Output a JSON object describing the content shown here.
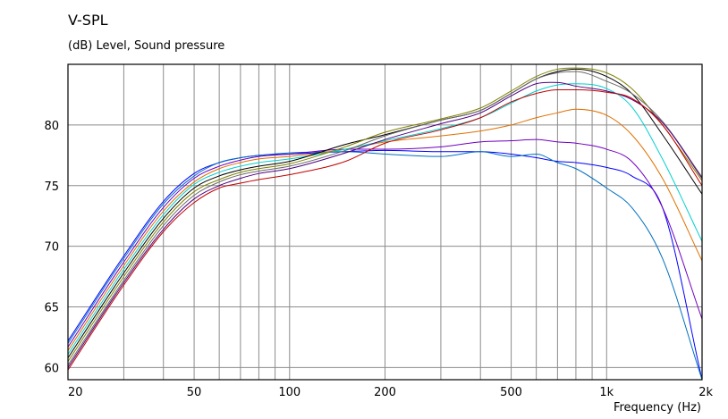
{
  "chart_data": {
    "type": "line",
    "title": "V-SPL",
    "subtitle": "(dB)  Level, Sound pressure",
    "xlabel": "Frequency  (Hz)",
    "ylabel": "",
    "x_scale": "log",
    "xlim": [
      20,
      2000
    ],
    "ylim": [
      59,
      85
    ],
    "grid": true,
    "legend": "none",
    "x_ticks": [
      {
        "value": 20,
        "label": "20"
      },
      {
        "value": 50,
        "label": "50"
      },
      {
        "value": 100,
        "label": "100"
      },
      {
        "value": 200,
        "label": "200"
      },
      {
        "value": 500,
        "label": "500"
      },
      {
        "value": 1000,
        "label": "1k"
      },
      {
        "value": 2000,
        "label": "2k"
      }
    ],
    "y_ticks": [
      60,
      65,
      70,
      75,
      80
    ],
    "x": [
      20,
      30,
      40,
      50,
      60,
      70,
      80,
      100,
      150,
      200,
      300,
      400,
      500,
      600,
      700,
      800,
      1000,
      1200,
      1500,
      2000
    ],
    "series": [
      {
        "color": "#0000ff",
        "values": [
          62.2,
          69.2,
          73.7,
          76.0,
          76.9,
          77.3,
          77.5,
          77.6,
          77.8,
          77.9,
          77.8,
          77.8,
          77.6,
          77.3,
          77.0,
          76.9,
          76.5,
          75.8,
          73.2,
          59.0
        ]
      },
      {
        "color": "#0070c0",
        "values": [
          62.0,
          69.0,
          73.5,
          75.8,
          76.9,
          77.3,
          77.5,
          77.7,
          77.8,
          77.6,
          77.4,
          77.8,
          77.4,
          77.6,
          76.9,
          76.4,
          74.8,
          73.2,
          69.0,
          59.0
        ]
      },
      {
        "color": "#7000c0",
        "values": [
          61.7,
          68.7,
          73.2,
          75.6,
          76.6,
          77.1,
          77.4,
          77.6,
          78.0,
          78.0,
          78.2,
          78.6,
          78.7,
          78.8,
          78.6,
          78.5,
          78.0,
          77.0,
          73.2,
          64.0
        ]
      },
      {
        "color": "#e07000",
        "values": [
          61.4,
          68.4,
          72.9,
          75.3,
          76.4,
          76.9,
          77.2,
          77.4,
          78.0,
          78.6,
          79.1,
          79.5,
          80.0,
          80.6,
          81.0,
          81.3,
          80.8,
          79.2,
          75.6,
          68.8
        ]
      },
      {
        "color": "#00d0d0",
        "values": [
          61.1,
          68.1,
          72.6,
          75.1,
          76.1,
          76.6,
          76.9,
          77.2,
          78.0,
          78.7,
          79.7,
          80.6,
          81.8,
          82.8,
          83.3,
          83.4,
          83.0,
          81.5,
          77.2,
          70.4
        ]
      },
      {
        "color": "#000000",
        "values": [
          60.8,
          67.8,
          72.3,
          74.8,
          75.8,
          76.3,
          76.6,
          77.0,
          78.4,
          79.2,
          80.4,
          81.2,
          82.6,
          83.8,
          84.4,
          84.6,
          84.0,
          82.6,
          79.2,
          74.3
        ]
      },
      {
        "color": "#808000",
        "values": [
          60.5,
          67.5,
          72.0,
          74.5,
          75.5,
          76.1,
          76.4,
          76.8,
          78.2,
          79.4,
          80.5,
          81.4,
          82.8,
          84.0,
          84.6,
          84.7,
          84.3,
          83.0,
          80.0,
          75.4
        ]
      },
      {
        "color": "#6a6a6a",
        "values": [
          60.2,
          67.2,
          71.7,
          74.2,
          75.3,
          75.9,
          76.2,
          76.6,
          77.9,
          79.1,
          80.4,
          81.2,
          82.6,
          83.8,
          84.3,
          84.4,
          83.6,
          82.6,
          80.3,
          75.7
        ]
      },
      {
        "color": "#500080",
        "values": [
          60.0,
          67.0,
          71.4,
          73.9,
          75.0,
          75.6,
          76.0,
          76.4,
          77.7,
          78.8,
          80.1,
          81.0,
          82.4,
          83.4,
          83.5,
          83.2,
          82.8,
          82.1,
          80.2,
          75.6
        ]
      },
      {
        "color": "#c00000",
        "values": [
          59.8,
          66.8,
          71.2,
          73.6,
          74.8,
          75.2,
          75.5,
          75.9,
          77.0,
          78.5,
          79.6,
          80.6,
          81.9,
          82.6,
          82.9,
          82.9,
          82.7,
          82.2,
          80.0,
          75.0
        ]
      }
    ]
  }
}
